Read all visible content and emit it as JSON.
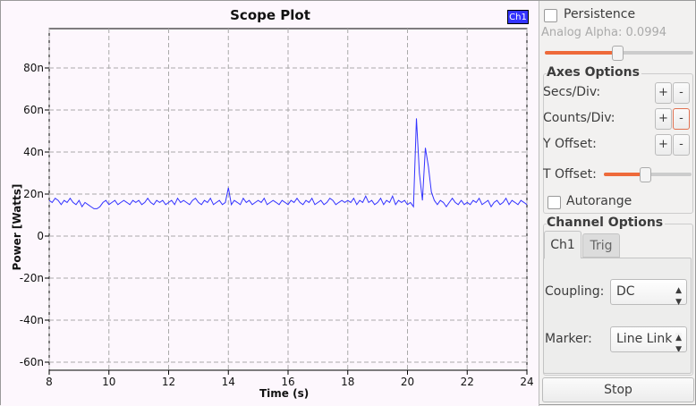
{
  "plot": {
    "title": "Scope Plot",
    "legend": "Ch1",
    "legend_color": "#3333ff",
    "line_color": "#3333ff"
  },
  "chart_data": {
    "type": "line",
    "title": "Scope Plot",
    "xlabel": "Time (s)",
    "ylabel": "Power [Watts]",
    "xlim": [
      8,
      24
    ],
    "ylim": [
      -62,
      95
    ],
    "grid": true,
    "legend_placement": "top-right",
    "xticks": [
      "8",
      "10",
      "12",
      "14",
      "16",
      "18",
      "20",
      "22",
      "24"
    ],
    "yticks": [
      "80n",
      "60n",
      "40n",
      "20n",
      "0",
      "-20n",
      "-40n",
      "-60n"
    ],
    "y_unit": "n",
    "x_start": 8,
    "x_step": 0.1,
    "series": [
      {
        "name": "Ch1",
        "values": [
          17,
          16,
          18,
          17,
          15,
          17,
          16,
          18,
          16,
          15,
          17,
          14,
          16,
          15,
          14,
          13,
          13,
          14,
          16,
          17,
          15,
          16,
          17,
          15,
          16,
          17,
          16,
          15,
          17,
          16,
          17,
          15,
          16,
          18,
          16,
          15,
          17,
          16,
          17,
          15,
          16,
          17,
          15,
          18,
          16,
          17,
          16,
          15,
          17,
          18,
          16,
          15,
          17,
          16,
          18,
          15,
          16,
          17,
          15,
          16,
          23,
          15,
          17,
          16,
          15,
          18,
          16,
          17,
          15,
          16,
          17,
          16,
          18,
          15,
          16,
          17,
          16,
          15,
          17,
          16,
          15,
          17,
          16,
          18,
          16,
          15,
          17,
          16,
          18,
          15,
          16,
          17,
          15,
          16,
          18,
          17,
          15,
          16,
          17,
          16,
          17,
          16,
          18,
          15,
          17,
          16,
          19,
          16,
          17,
          15,
          16,
          18,
          15,
          17,
          16,
          19,
          15,
          17,
          16,
          17,
          15,
          16,
          14,
          56,
          30,
          17,
          42,
          33,
          21,
          17,
          15,
          17,
          16,
          14,
          16,
          18,
          16,
          15,
          17,
          15,
          16,
          15,
          17,
          16,
          18,
          15,
          16,
          17,
          14,
          16,
          17,
          15,
          16,
          18,
          15,
          17,
          16,
          15,
          17,
          16,
          15
        ]
      }
    ]
  },
  "side": {
    "persistence": "Persistence",
    "persistence_checked": false,
    "alpha_label": "Analog Alpha: 0.0994",
    "alpha_value": 0.0994,
    "alpha_fraction": 0.5,
    "axes_title": "Axes Options",
    "secs": "Secs/Div:",
    "counts": "Counts/Div:",
    "yoffset": "Y Offset:",
    "toffset": "T Offset:",
    "toffset_fraction": 0.5,
    "plus": "+",
    "minus": "-",
    "autorange": "Autorange",
    "autorange_checked": false,
    "channel_title": "Channel Options",
    "tabs": [
      "Ch1",
      "Trig"
    ],
    "coupling_label": "Coupling:",
    "coupling_value": "DC",
    "marker_label": "Marker:",
    "marker_value": "Line Link",
    "stop": "Stop"
  }
}
